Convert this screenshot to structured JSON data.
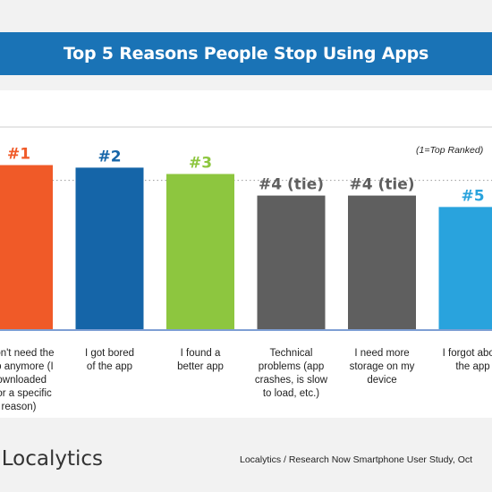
{
  "title": "Top 5 Reasons People Stop Using Apps",
  "note": "(1=Top Ranked)",
  "brand": "Localytics",
  "source": "Localytics / Research Now Smartphone User Study, Oct",
  "chart_data": {
    "type": "bar",
    "categories": [
      "I don't need the app anymore (I downloaded it for a specific reason)",
      "I got bored of the app",
      "I found a better app",
      "Technical problems (app crashes, is slow to load, etc.)",
      "I need more storage on my device",
      "I forgot about the app"
    ],
    "rank_labels": [
      "#1",
      "#2",
      "#3",
      "#4 (tie)",
      "#4 (tie)",
      "#5"
    ],
    "values": [
      130,
      128,
      123,
      106,
      106,
      97
    ],
    "ylim": [
      0,
      160
    ],
    "gridline_value": 118,
    "colors": [
      "#f05a28",
      "#1565a8",
      "#8dc63f",
      "#5f5f5f",
      "#5f5f5f",
      "#29a3dd"
    ],
    "label_colors": [
      "#f05a28",
      "#1565a8",
      "#8dc63f",
      "#5f5f5f",
      "#5f5f5f",
      "#29a3dd"
    ],
    "baseline_color": "#7e9fd4",
    "category_label_lines": [
      [
        "I don't need the",
        "app anymore (I",
        "downloaded",
        "it for a specific",
        "reason)"
      ],
      [
        "I got bored",
        "of the app"
      ],
      [
        "I found a",
        "better app"
      ],
      [
        "Technical",
        "problems (app",
        "crashes, is slow",
        "to load, etc.)"
      ],
      [
        "I need more",
        "storage on my",
        "device"
      ],
      [
        "I forgot about",
        "the app"
      ]
    ]
  }
}
